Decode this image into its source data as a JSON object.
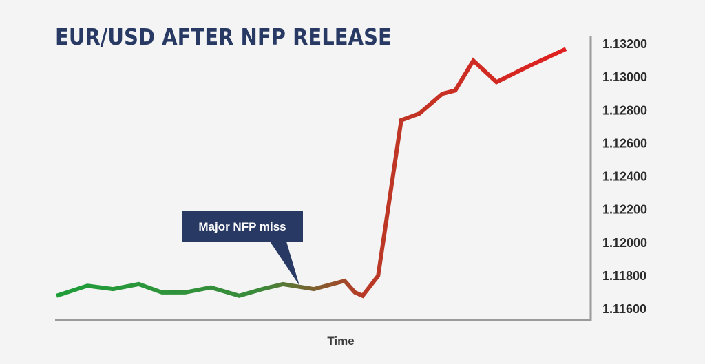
{
  "chart_data": {
    "type": "line",
    "title": "EUR/USD AFTER NFP RELEASE",
    "xlabel": "Time",
    "ylabel": "",
    "ylim": [
      1.1155,
      1.1325
    ],
    "yticks": [
      "1.13200",
      "1.13000",
      "1.12800",
      "1.12600",
      "1.12400",
      "1.12200",
      "1.12000",
      "1.11800",
      "1.11600"
    ],
    "ytick_values": [
      1.132,
      1.13,
      1.128,
      1.126,
      1.124,
      1.122,
      1.12,
      1.118,
      1.116
    ],
    "grid": false,
    "x": [
      0,
      1.2,
      2.2,
      3.2,
      4.1,
      5.0,
      6.0,
      7.1,
      8.0,
      8.8,
      10.0,
      11.2,
      11.6,
      11.9,
      12.5,
      13.4,
      14.1,
      15.0,
      15.5,
      16.2,
      17.1,
      18.4,
      19.8
    ],
    "series": [
      {
        "values": [
          1.1168,
          1.1174,
          1.1172,
          1.1175,
          1.117,
          1.117,
          1.1173,
          1.1168,
          1.1172,
          1.1175,
          1.1172,
          1.1177,
          1.117,
          1.1168,
          1.118,
          1.1274,
          1.1278,
          1.129,
          1.1292,
          1.131,
          1.1297,
          1.1307,
          1.1317
        ],
        "color_start": "#1f9e3a",
        "color_end": "#e02020"
      }
    ],
    "annotations": [
      {
        "text": "Major NFP miss",
        "color": "#283a64"
      }
    ]
  }
}
